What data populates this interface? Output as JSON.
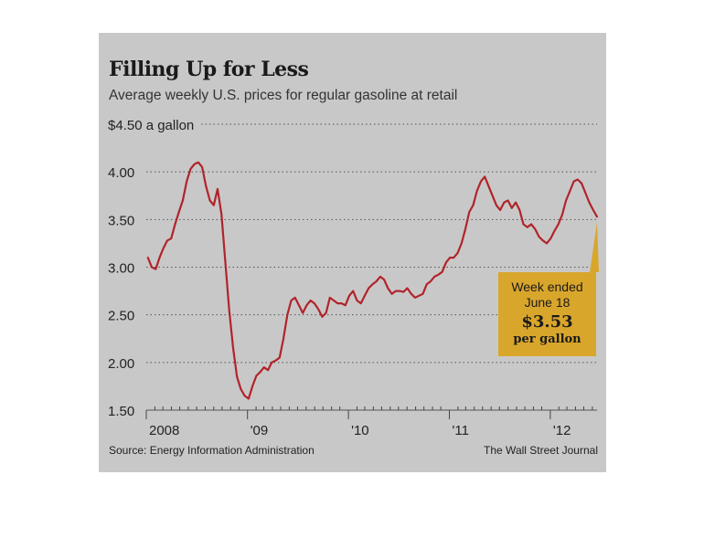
{
  "chart_data": {
    "type": "line",
    "title": "Filling Up for Less",
    "subtitle": "Average weekly U.S. prices for regular gasoline at retail",
    "ylabel": "$4.50 a gallon",
    "ylim": [
      1.5,
      4.5
    ],
    "yticks": [
      1.5,
      2.0,
      2.5,
      3.0,
      3.5,
      4.0,
      4.5
    ],
    "ytick_labels": [
      "1.50",
      "2.00",
      "2.50",
      "3.00",
      "3.50",
      "4.00",
      "$4.50 a gallon"
    ],
    "xlim": [
      "2008-01",
      "2012-06"
    ],
    "xtick_labels": [
      "2008",
      "'09",
      "'10",
      "'11",
      "'12"
    ],
    "grid": "horizontal dotted",
    "line_color": "#b0242b",
    "series": [
      {
        "x": [
          "2008-01-07",
          "2008-01-21",
          "2008-02-04",
          "2008-02-18",
          "2008-03-03",
          "2008-03-17",
          "2008-03-31",
          "2008-04-14",
          "2008-04-28",
          "2008-05-12",
          "2008-05-26",
          "2008-06-09",
          "2008-06-23",
          "2008-07-07",
          "2008-07-21",
          "2008-08-04",
          "2008-08-18",
          "2008-09-01",
          "2008-09-15",
          "2008-09-29",
          "2008-10-13",
          "2008-10-27",
          "2008-11-10",
          "2008-11-24",
          "2008-12-08",
          "2008-12-22",
          "2009-01-05",
          "2009-01-19",
          "2009-02-02",
          "2009-02-16",
          "2009-03-02",
          "2009-03-16",
          "2009-03-30",
          "2009-04-13",
          "2009-04-27",
          "2009-05-11",
          "2009-05-25",
          "2009-06-08",
          "2009-06-22",
          "2009-07-06",
          "2009-07-20",
          "2009-08-03",
          "2009-08-17",
          "2009-08-31",
          "2009-09-14",
          "2009-09-28",
          "2009-10-12",
          "2009-10-26",
          "2009-11-09",
          "2009-11-23",
          "2009-12-07",
          "2009-12-21",
          "2010-01-04",
          "2010-01-18",
          "2010-02-01",
          "2010-02-15",
          "2010-03-01",
          "2010-03-15",
          "2010-03-29",
          "2010-04-12",
          "2010-04-26",
          "2010-05-10",
          "2010-05-24",
          "2010-06-07",
          "2010-06-21",
          "2010-07-05",
          "2010-07-19",
          "2010-08-02",
          "2010-08-16",
          "2010-08-30",
          "2010-09-13",
          "2010-09-27",
          "2010-10-11",
          "2010-10-25",
          "2010-11-08",
          "2010-11-22",
          "2010-12-06",
          "2010-12-20",
          "2011-01-03",
          "2011-01-17",
          "2011-01-31",
          "2011-02-14",
          "2011-02-28",
          "2011-03-14",
          "2011-03-28",
          "2011-04-11",
          "2011-04-25",
          "2011-05-09",
          "2011-05-23",
          "2011-06-06",
          "2011-06-20",
          "2011-07-04",
          "2011-07-18",
          "2011-08-01",
          "2011-08-15",
          "2011-08-29",
          "2011-09-12",
          "2011-09-26",
          "2011-10-10",
          "2011-10-24",
          "2011-11-07",
          "2011-11-21",
          "2011-12-05",
          "2011-12-19",
          "2012-01-02",
          "2012-01-16",
          "2012-01-30",
          "2012-02-13",
          "2012-02-27",
          "2012-03-12",
          "2012-03-26",
          "2012-04-09",
          "2012-04-23",
          "2012-05-07",
          "2012-05-21",
          "2012-06-04",
          "2012-06-18"
        ],
        "values": [
          3.1,
          3.0,
          2.98,
          3.1,
          3.2,
          3.28,
          3.3,
          3.45,
          3.58,
          3.7,
          3.9,
          4.03,
          4.08,
          4.1,
          4.05,
          3.85,
          3.7,
          3.65,
          3.82,
          3.55,
          3.05,
          2.55,
          2.15,
          1.85,
          1.72,
          1.65,
          1.62,
          1.75,
          1.86,
          1.9,
          1.95,
          1.92,
          2.0,
          2.02,
          2.05,
          2.25,
          2.5,
          2.65,
          2.68,
          2.6,
          2.52,
          2.6,
          2.65,
          2.62,
          2.56,
          2.48,
          2.52,
          2.68,
          2.65,
          2.62,
          2.62,
          2.6,
          2.7,
          2.75,
          2.65,
          2.62,
          2.7,
          2.78,
          2.82,
          2.85,
          2.9,
          2.87,
          2.78,
          2.72,
          2.75,
          2.75,
          2.74,
          2.78,
          2.72,
          2.68,
          2.7,
          2.72,
          2.82,
          2.85,
          2.9,
          2.92,
          2.95,
          3.05,
          3.1,
          3.1,
          3.15,
          3.25,
          3.4,
          3.58,
          3.65,
          3.8,
          3.9,
          3.95,
          3.85,
          3.75,
          3.65,
          3.6,
          3.68,
          3.7,
          3.62,
          3.68,
          3.6,
          3.45,
          3.42,
          3.45,
          3.4,
          3.32,
          3.28,
          3.25,
          3.3,
          3.38,
          3.45,
          3.55,
          3.7,
          3.8,
          3.9,
          3.92,
          3.88,
          3.78,
          3.68,
          3.6,
          3.53
        ]
      }
    ]
  },
  "callout": {
    "line1": "Week ended",
    "line2": "June 18",
    "value": "$3.53",
    "unit": "per gallon"
  },
  "footer": {
    "source": "Source: Energy Information Administration",
    "credit": "The Wall Street Journal"
  }
}
